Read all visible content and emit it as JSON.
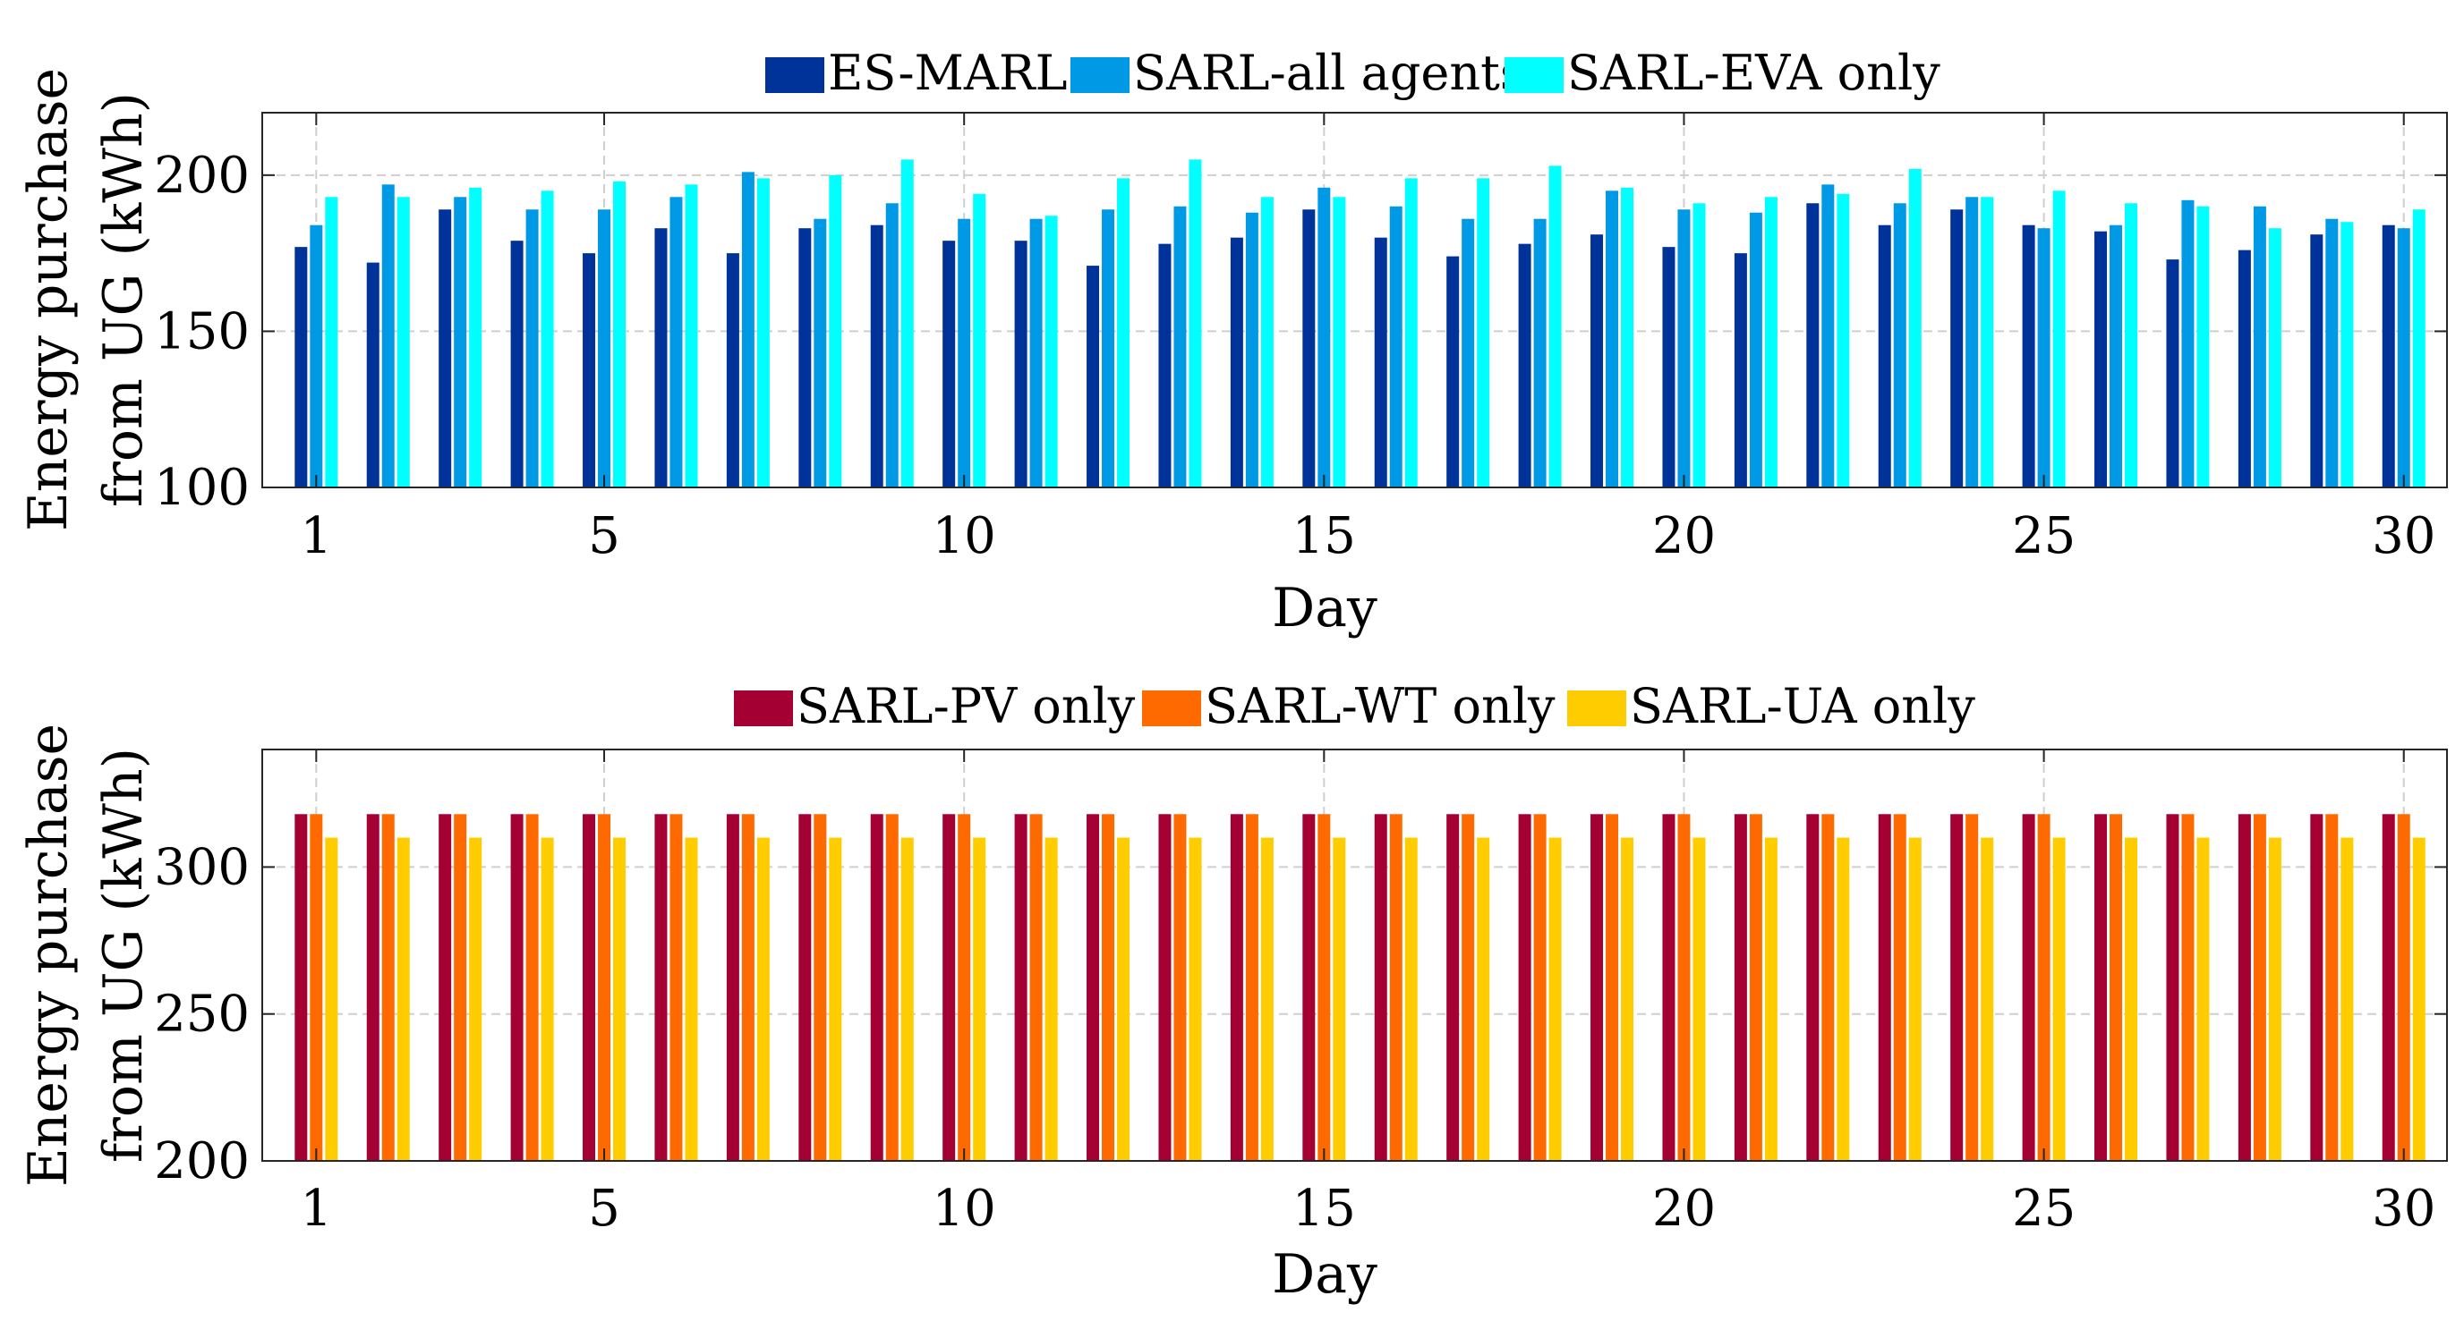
{
  "chart_data": [
    {
      "type": "bar",
      "xlabel": "Day",
      "ylabel_lines": [
        "Energy purchase",
        "from UG (kWh)"
      ],
      "xlim": [
        0.25,
        30.6
      ],
      "ylim": [
        100,
        220
      ],
      "xticks": [
        1,
        5,
        10,
        15,
        20,
        25,
        30
      ],
      "yticks": [
        100,
        150,
        200
      ],
      "grid": true,
      "legend_position": "top-center",
      "categories": [
        1,
        2,
        3,
        4,
        5,
        6,
        7,
        8,
        9,
        10,
        11,
        12,
        13,
        14,
        15,
        16,
        17,
        18,
        19,
        20,
        21,
        22,
        23,
        24,
        25,
        26,
        27,
        28,
        29,
        30
      ],
      "series": [
        {
          "name": "ES-MARL",
          "color": "#003399",
          "values": [
            177,
            172,
            189,
            179,
            175,
            183,
            175,
            183,
            184,
            179,
            179,
            171,
            178,
            180,
            189,
            180,
            174,
            178,
            181,
            177,
            175,
            191,
            184,
            189,
            184,
            182,
            173,
            176,
            181,
            184
          ]
        },
        {
          "name": "SARL-all agents",
          "color": "#0099e5",
          "values": [
            184,
            197,
            193,
            189,
            189,
            193,
            201,
            186,
            191,
            186,
            186,
            189,
            190,
            188,
            196,
            190,
            186,
            186,
            195,
            189,
            188,
            197,
            191,
            193,
            183,
            184,
            192,
            190,
            186,
            183
          ]
        },
        {
          "name": "SARL-EVA only",
          "color": "#00ffff",
          "values": [
            193,
            193,
            196,
            195,
            198,
            197,
            199,
            200,
            205,
            194,
            187,
            199,
            205,
            193,
            193,
            199,
            199,
            203,
            196,
            191,
            193,
            194,
            202,
            193,
            195,
            191,
            190,
            183,
            185,
            189
          ]
        }
      ]
    },
    {
      "type": "bar",
      "xlabel": "Day",
      "ylabel_lines": [
        "Energy purchase",
        "from UG (kWh)"
      ],
      "xlim": [
        0.25,
        30.6
      ],
      "ylim": [
        200,
        340
      ],
      "xticks": [
        1,
        5,
        10,
        15,
        20,
        25,
        30
      ],
      "yticks": [
        200,
        250,
        300
      ],
      "grid": true,
      "legend_position": "top-center",
      "categories": [
        1,
        2,
        3,
        4,
        5,
        6,
        7,
        8,
        9,
        10,
        11,
        12,
        13,
        14,
        15,
        16,
        17,
        18,
        19,
        20,
        21,
        22,
        23,
        24,
        25,
        26,
        27,
        28,
        29,
        30
      ],
      "series": [
        {
          "name": "SARL-PV only",
          "color": "#a50034",
          "values": [
            318,
            318,
            318,
            318,
            318,
            318,
            318,
            318,
            318,
            318,
            318,
            318,
            318,
            318,
            318,
            318,
            318,
            318,
            318,
            318,
            318,
            318,
            318,
            318,
            318,
            318,
            318,
            318,
            318,
            318
          ]
        },
        {
          "name": "SARL-WT only",
          "color": "#ff6a00",
          "values": [
            318,
            318,
            318,
            318,
            318,
            318,
            318,
            318,
            318,
            318,
            318,
            318,
            318,
            318,
            318,
            318,
            318,
            318,
            318,
            318,
            318,
            318,
            318,
            318,
            318,
            318,
            318,
            318,
            318,
            318
          ]
        },
        {
          "name": "SARL-UA only",
          "color": "#ffcc00",
          "values": [
            310,
            310,
            310,
            310,
            310,
            310,
            310,
            310,
            310,
            310,
            310,
            310,
            310,
            310,
            310,
            310,
            310,
            310,
            310,
            310,
            310,
            310,
            310,
            310,
            310,
            310,
            310,
            310,
            310,
            310
          ]
        }
      ]
    }
  ]
}
